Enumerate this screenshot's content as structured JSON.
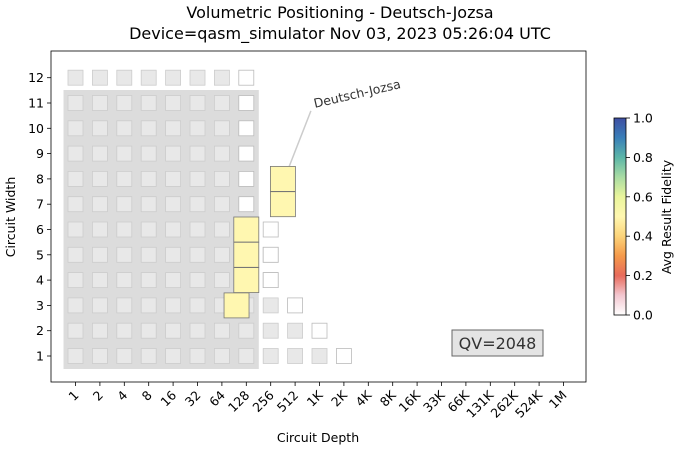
{
  "chart_data": {
    "type": "heatmap",
    "title": "Volumetric Positioning - Deutsch-Jozsa",
    "subtitle": "Device=qasm_simulator  Nov 03, 2023 05:26:04 UTC",
    "xlabel": "Circuit Depth",
    "ylabel": "Circuit Width",
    "x_ticks": [
      "1",
      "2",
      "4",
      "8",
      "16",
      "32",
      "64",
      "128",
      "256",
      "512",
      "1K",
      "2K",
      "4K",
      "8K",
      "16K",
      "33K",
      "66K",
      "131K",
      "262K",
      "524K",
      "1M"
    ],
    "y_ticks": [
      "1",
      "2",
      "3",
      "4",
      "5",
      "6",
      "7",
      "8",
      "9",
      "10",
      "11",
      "12"
    ],
    "qv_label": "QV=2048",
    "qv_shaded_region": {
      "max_depth_index": 7,
      "max_width": 11
    },
    "colorbar": {
      "label": "Avg Result Fidelity",
      "range": [
        0.0,
        1.0
      ],
      "ticks": [
        "0.0",
        "0.2",
        "0.4",
        "0.6",
        "0.8",
        "1.0"
      ]
    },
    "grid_cells": {
      "filled_gray_max_depth_index": 8,
      "filled_gray_by_width": [
        {
          "width": 1,
          "max_depth_index": 11
        },
        {
          "width": 2,
          "max_depth_index": 10
        },
        {
          "width": 3,
          "max_depth_index": 9
        },
        {
          "width": 4,
          "max_depth_index": 9
        },
        {
          "width": 5,
          "max_depth_index": 9
        },
        {
          "width": 6,
          "max_depth_index": 8
        },
        {
          "width": 7,
          "max_depth_index": 7
        },
        {
          "width": 8,
          "max_depth_index": 7
        },
        {
          "width": 9,
          "max_depth_index": 7
        },
        {
          "width": 10,
          "max_depth_index": 7
        },
        {
          "width": 11,
          "max_depth_index": 7
        },
        {
          "width": 12,
          "max_depth_index": 7
        }
      ],
      "outline_by_width": [
        {
          "width": 1,
          "depth_index": 12
        },
        {
          "width": 2,
          "depth_index": 11
        },
        {
          "width": 3,
          "depth_index": 10
        },
        {
          "width": 4,
          "depth_index": 9
        },
        {
          "width": 5,
          "depth_index": 9
        },
        {
          "width": 6,
          "depth_index": 9
        },
        {
          "width": 7,
          "depth_index": 8
        },
        {
          "width": 8,
          "depth_index": 8
        },
        {
          "width": 9,
          "depth_index": 8
        },
        {
          "width": 10,
          "depth_index": 8
        },
        {
          "width": 11,
          "depth_index": 8
        },
        {
          "width": 12,
          "depth_index": 8
        }
      ]
    },
    "data_points": [
      {
        "width": 3,
        "depth": 7.6,
        "fidelity": 0.5
      },
      {
        "width": 4,
        "depth": 8.0,
        "fidelity": 0.5
      },
      {
        "width": 5,
        "depth": 8.0,
        "fidelity": 0.5
      },
      {
        "width": 6,
        "depth": 8.0,
        "fidelity": 0.5
      },
      {
        "width": 7,
        "depth": 9.5,
        "fidelity": 0.5
      },
      {
        "width": 8,
        "depth": 9.5,
        "fidelity": 0.5
      }
    ],
    "annotation": {
      "text": "Deutsch-Jozsa",
      "width": 8,
      "depth": 9.5
    }
  }
}
